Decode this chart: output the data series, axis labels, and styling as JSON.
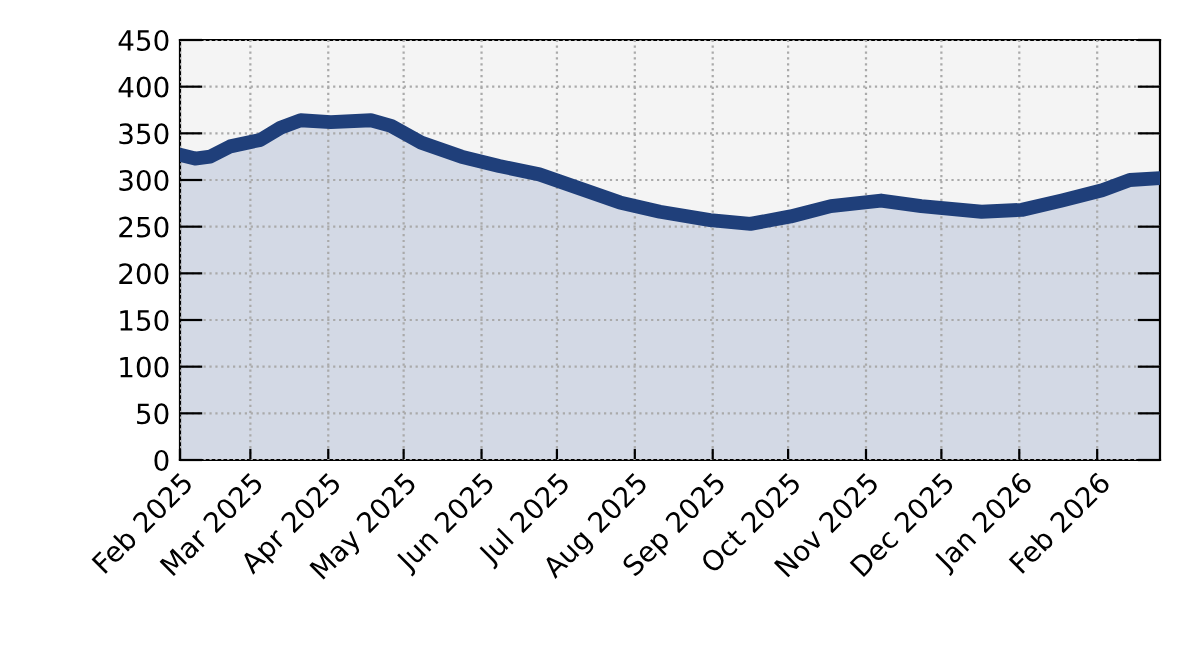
{
  "chart_data": {
    "type": "area",
    "x": [
      "2025-02-01",
      "2025-02-07",
      "2025-02-13",
      "2025-02-21",
      "2025-03-05",
      "2025-03-13",
      "2025-03-21",
      "2025-04-02",
      "2025-04-18",
      "2025-04-26",
      "2025-05-08",
      "2025-05-24",
      "2025-06-08",
      "2025-06-24",
      "2025-07-10",
      "2025-07-26",
      "2025-08-11",
      "2025-08-31",
      "2025-09-16",
      "2025-10-02",
      "2025-10-18",
      "2025-11-07",
      "2025-11-23",
      "2025-12-17",
      "2026-01-02",
      "2026-01-18",
      "2026-02-03",
      "2026-02-14",
      "2026-02-26"
    ],
    "series": [
      {
        "color": "#1f3f7a",
        "values": [
          327,
          323,
          325,
          336,
          343,
          356,
          364,
          362,
          364,
          358,
          340,
          325,
          315,
          306,
          291,
          276,
          266,
          257,
          253,
          261,
          272,
          278,
          272,
          266,
          268,
          278,
          289,
          300,
          302
        ]
      }
    ],
    "xlim": [
      "2025-02-01",
      "2026-02-26"
    ],
    "xticks": [
      {
        "value": "2025-02-01",
        "label": "Feb 2025"
      },
      {
        "value": "2025-03-01",
        "label": "Mar 2025"
      },
      {
        "value": "2025-04-01",
        "label": "Apr 2025"
      },
      {
        "value": "2025-05-01",
        "label": "May 2025"
      },
      {
        "value": "2025-06-01",
        "label": "Jun 2025"
      },
      {
        "value": "2025-07-01",
        "label": "Jul 2025"
      },
      {
        "value": "2025-08-01",
        "label": "Aug 2025"
      },
      {
        "value": "2025-09-01",
        "label": "Sep 2025"
      },
      {
        "value": "2025-10-01",
        "label": "Oct 2025"
      },
      {
        "value": "2025-11-01",
        "label": "Nov 2025"
      },
      {
        "value": "2025-12-01",
        "label": "Dec 2025"
      },
      {
        "value": "2026-01-01",
        "label": "Jan 2026"
      },
      {
        "value": "2026-02-01",
        "label": "Feb 2026"
      }
    ],
    "ylim": [
      0,
      450
    ],
    "yticks": [
      0,
      50,
      100,
      150,
      200,
      250,
      300,
      350,
      400,
      450
    ],
    "grid": true,
    "line_style": "solid"
  }
}
